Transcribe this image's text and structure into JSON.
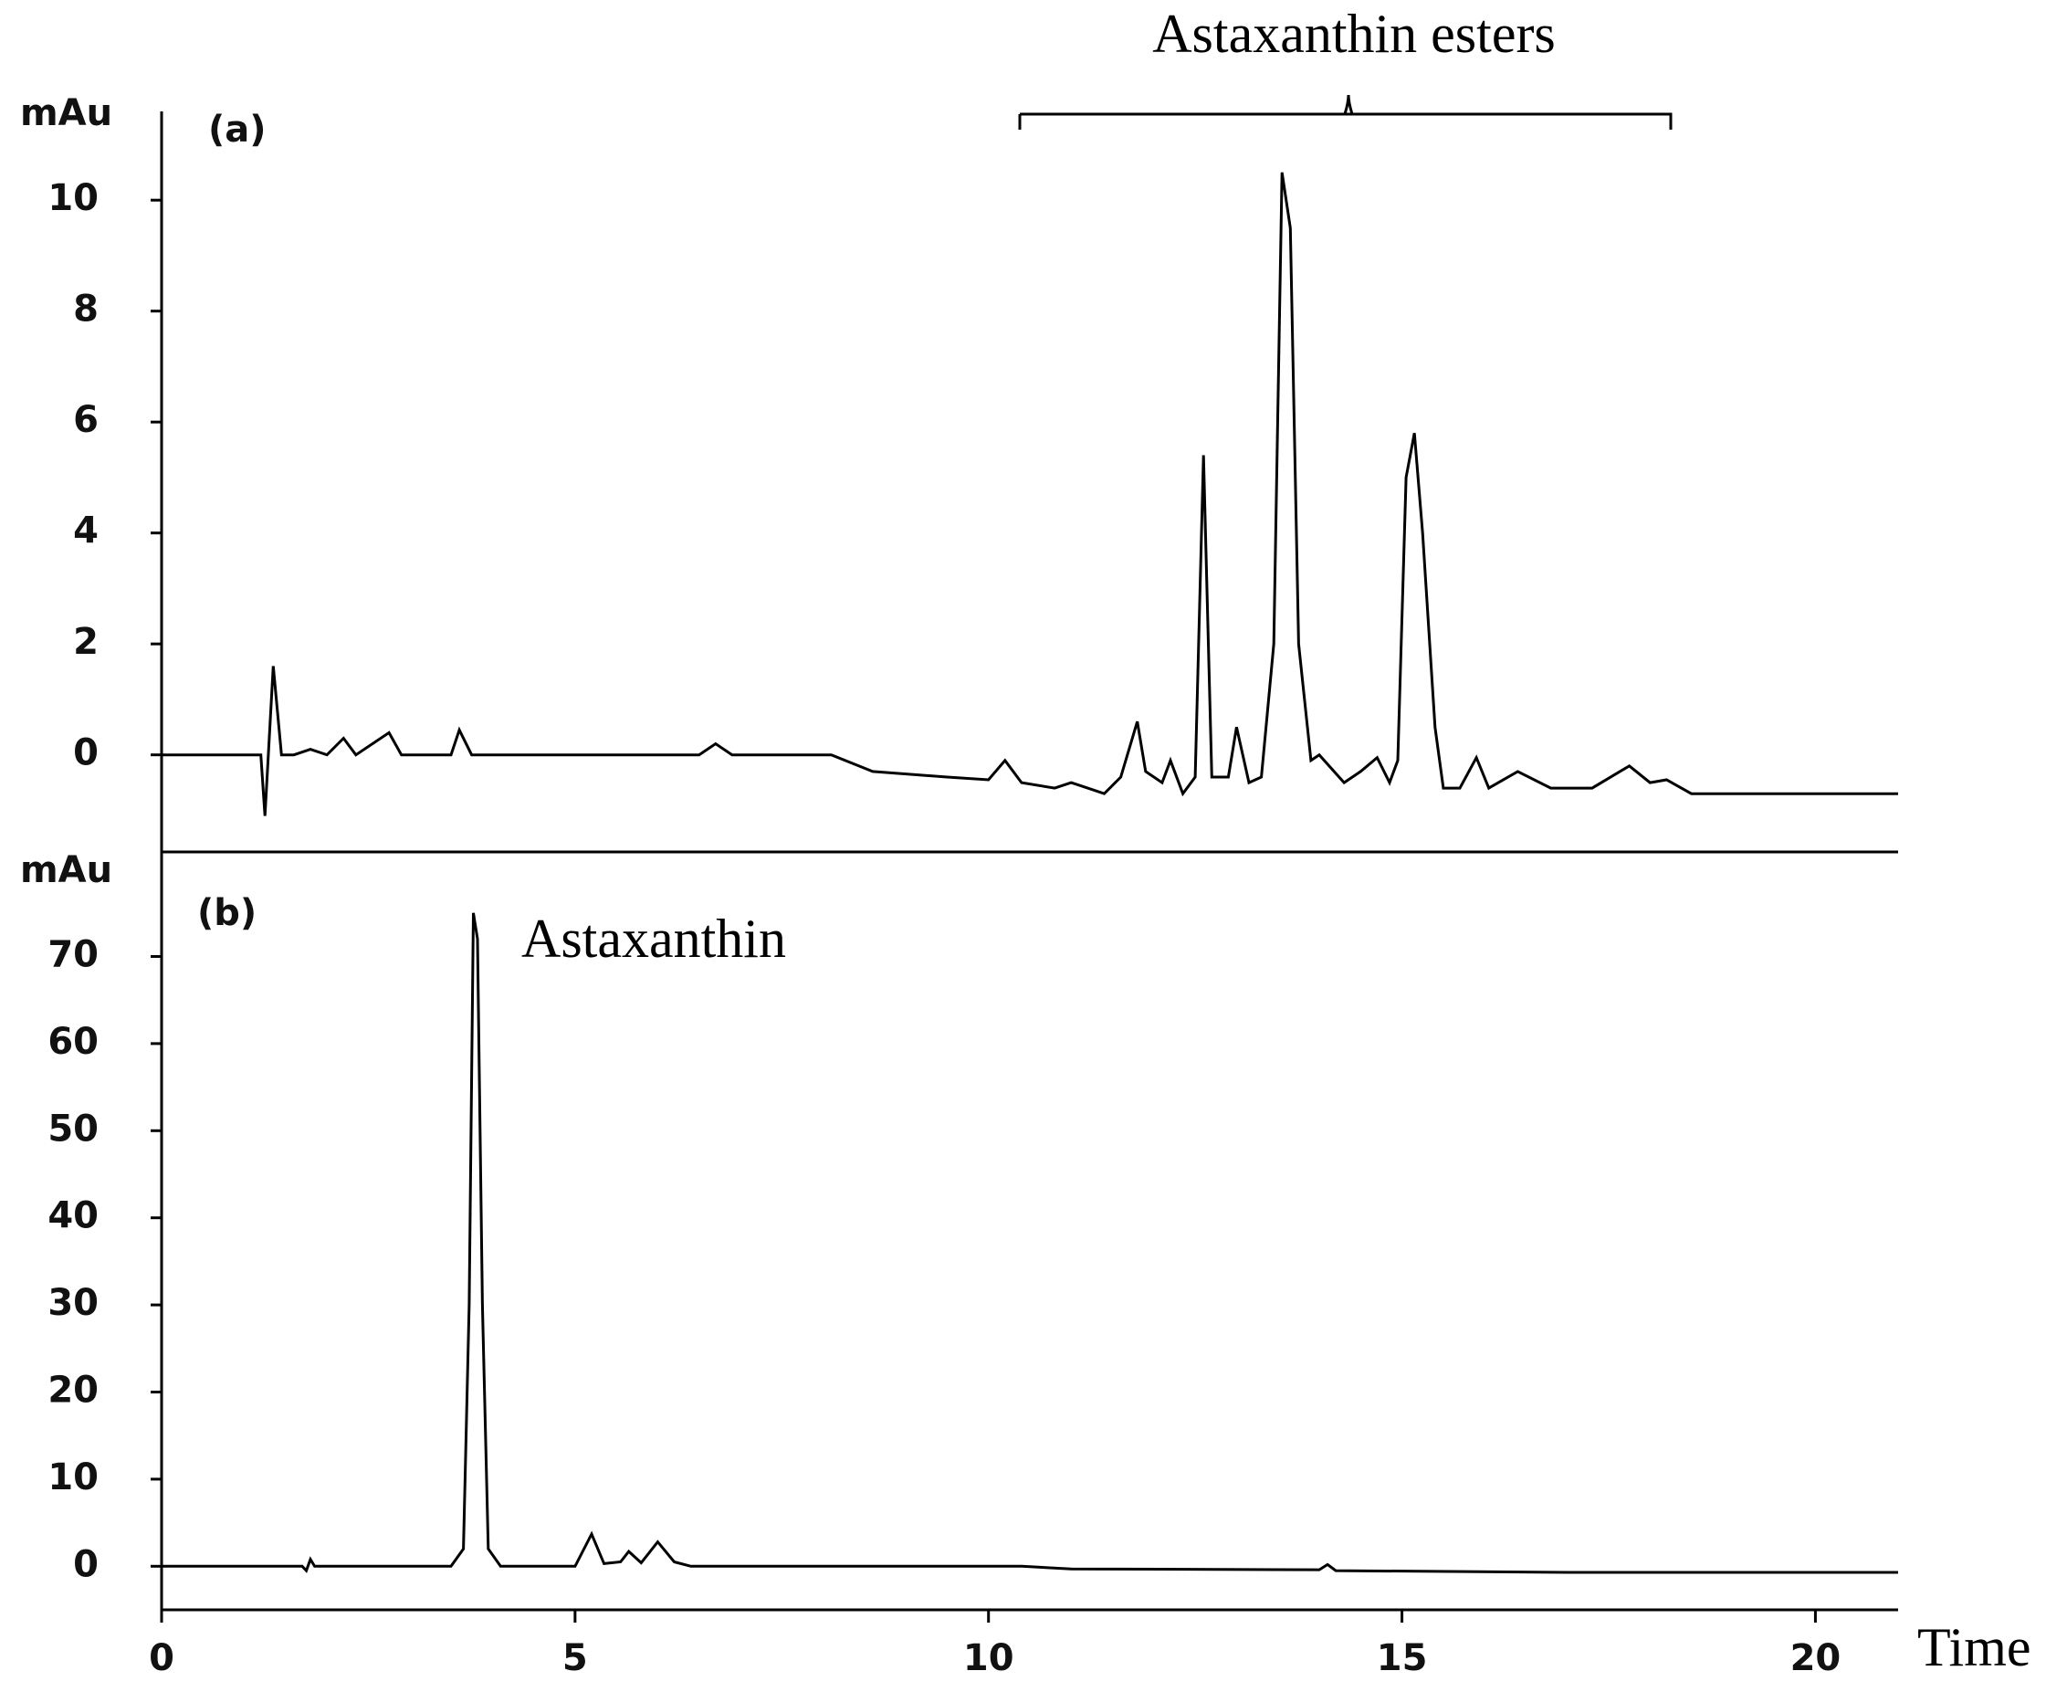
{
  "chart_data": [
    {
      "type": "line",
      "panel": "(a)",
      "ylabel": "mAu",
      "annotation": "Astaxanthin esters",
      "color": "#000000",
      "xlim": [
        0,
        21
      ],
      "ylim": [
        -1.75,
        11.6
      ],
      "yticks": [
        0,
        2,
        4,
        6,
        8,
        10
      ],
      "x": [
        0,
        1.2,
        1.25,
        1.35,
        1.45,
        1.6,
        1.8,
        2.0,
        2.2,
        2.35,
        2.75,
        2.9,
        3.5,
        3.6,
        3.75,
        4.2,
        6.5,
        6.7,
        6.9,
        8.1,
        8.6,
        9.5,
        10.0,
        10.2,
        10.4,
        10.8,
        11.0,
        11.2,
        11.4,
        11.6,
        11.8,
        11.9,
        12.1,
        12.2,
        12.35,
        12.5,
        12.6,
        12.7,
        12.9,
        13.0,
        13.15,
        13.3,
        13.45,
        13.55,
        13.65,
        13.75,
        13.9,
        14.0,
        14.3,
        14.5,
        14.7,
        14.85,
        14.95,
        15.05,
        15.15,
        15.25,
        15.4,
        15.5,
        15.7,
        15.9,
        16.05,
        16.4,
        16.8,
        17.3,
        17.75,
        18.0,
        18.2,
        18.5,
        19,
        20,
        21
      ],
      "values": [
        0,
        0,
        -1.1,
        1.6,
        0,
        0,
        0.1,
        0,
        0.3,
        0,
        0.4,
        0,
        0,
        0.45,
        0,
        0,
        0,
        0.2,
        0,
        0,
        -0.3,
        -0.4,
        -0.45,
        -0.1,
        -0.5,
        -0.6,
        -0.5,
        -0.6,
        -0.7,
        -0.4,
        0.6,
        -0.3,
        -0.5,
        -0.1,
        -0.7,
        -0.4,
        5.4,
        -0.4,
        -0.4,
        0.5,
        -0.5,
        -0.4,
        2.0,
        10.5,
        9.5,
        2.0,
        -0.1,
        0,
        -0.5,
        -0.3,
        -0.05,
        -0.5,
        -0.1,
        5.0,
        5.8,
        4.0,
        0.5,
        -0.6,
        -0.6,
        -0.05,
        -0.6,
        -0.3,
        -0.6,
        -0.6,
        -0.2,
        -0.5,
        -0.45,
        -0.7,
        -0.7,
        -0.7,
        -0.7
      ]
    },
    {
      "type": "line",
      "panel": "(b)",
      "ylabel": "mAu",
      "annotation": "Astaxanthin",
      "xlabel": "Time",
      "color": "#000000",
      "xlim": [
        0,
        21
      ],
      "ylim": [
        -5,
        82
      ],
      "yticks": [
        0,
        10,
        20,
        30,
        40,
        50,
        60,
        70
      ],
      "xticks": [
        0,
        5,
        10,
        15,
        20
      ],
      "x": [
        0,
        1.7,
        1.75,
        1.8,
        1.85,
        3.5,
        3.65,
        3.72,
        3.77,
        3.82,
        3.88,
        3.95,
        4.1,
        5.0,
        5.2,
        5.35,
        5.55,
        5.65,
        5.8,
        6.0,
        6.2,
        6.4,
        10.4,
        11,
        14.0,
        14.1,
        14.2,
        17,
        21
      ],
      "values": [
        0,
        0,
        -0.5,
        0.8,
        0,
        0,
        2,
        30,
        75,
        72,
        30,
        2,
        0,
        0,
        3.7,
        0.3,
        0.5,
        1.7,
        0.4,
        2.8,
        0.5,
        0,
        0,
        -0.3,
        -0.4,
        0.2,
        -0.5,
        -0.7,
        -0.7
      ]
    }
  ]
}
